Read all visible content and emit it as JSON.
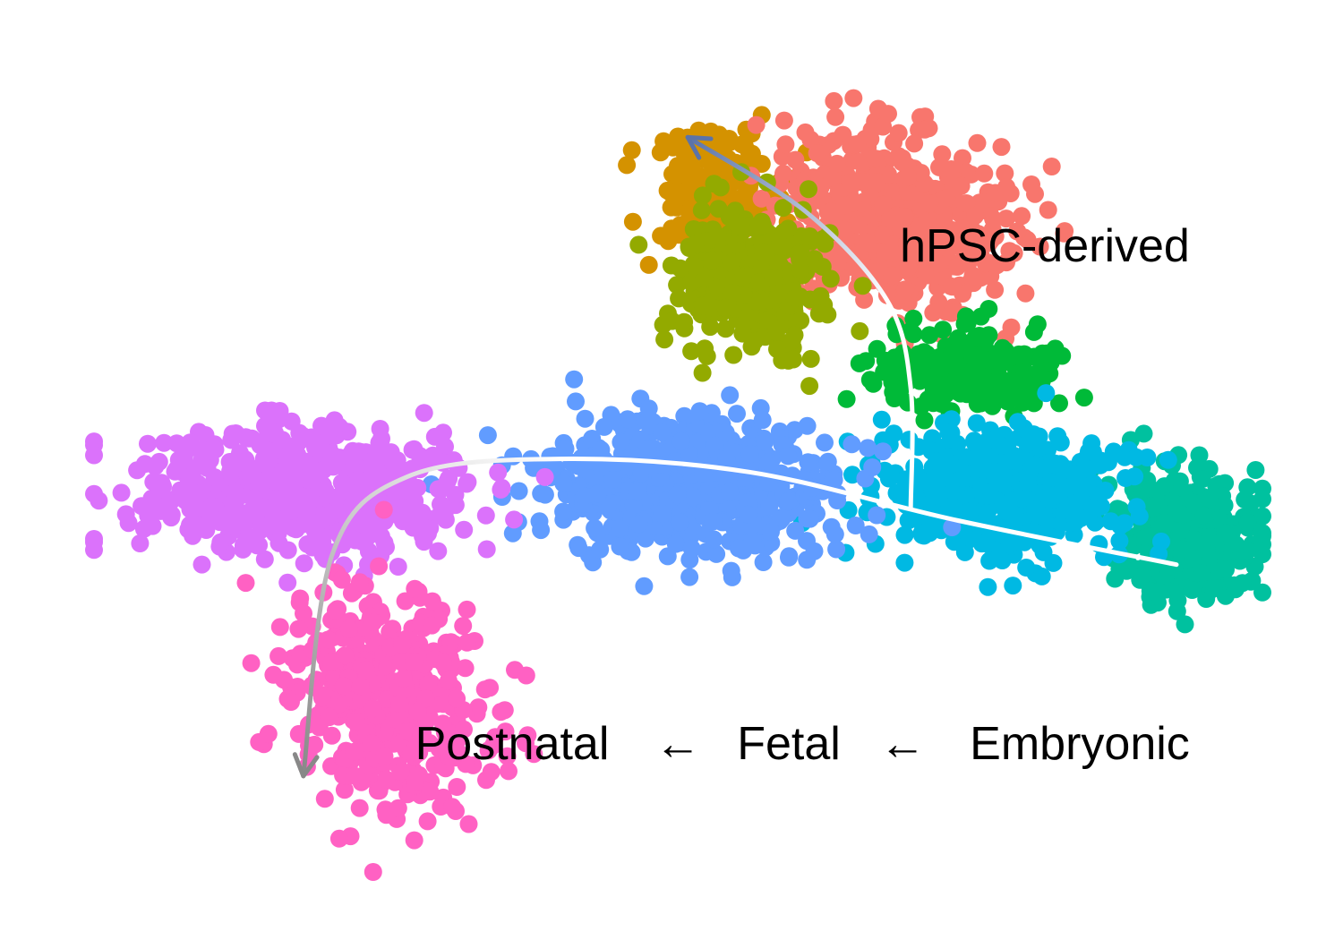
{
  "chart_data": {
    "type": "scatter",
    "title": "",
    "xlabel": "",
    "ylabel": "",
    "axes_visible": false,
    "grid": false,
    "legend": "none",
    "annotations": {
      "branch_label": "hPSC-derived",
      "stage_axis": {
        "postnatal": "Postnatal",
        "arrow_1": "←",
        "fetal": "Fetal",
        "arrow_2": "←",
        "embryonic": "Embryonic"
      }
    },
    "series": [
      {
        "color": "#D49200",
        "center": [
          6.6,
          7.8
        ],
        "spread": [
          0.55,
          0.6
        ],
        "rot": 0.0,
        "n": 190
      },
      {
        "color": "#F8766D",
        "center": [
          8.5,
          7.5
        ],
        "spread": [
          1.0,
          0.75
        ],
        "rot": -0.2,
        "n": 620
      },
      {
        "color": "#93AA00",
        "center": [
          7.0,
          6.8
        ],
        "spread": [
          0.6,
          0.65
        ],
        "rot": 0.0,
        "n": 360
      },
      {
        "color": "#00BA38",
        "center": [
          9.3,
          5.8
        ],
        "spread": [
          0.75,
          0.4
        ],
        "rot": 0.0,
        "n": 240
      },
      {
        "color": "#00C19F",
        "center": [
          11.6,
          3.9
        ],
        "spread": [
          0.6,
          0.55
        ],
        "rot": 0.0,
        "n": 430
      },
      {
        "color": "#00B9E3",
        "center": [
          9.7,
          4.4
        ],
        "spread": [
          1.0,
          0.55
        ],
        "rot": 0.0,
        "n": 520
      },
      {
        "color": "#619CFF",
        "center": [
          6.4,
          4.5
        ],
        "spread": [
          1.3,
          0.6
        ],
        "rot": 0.0,
        "n": 620
      },
      {
        "color": "#DB72FB",
        "center": [
          2.3,
          4.4
        ],
        "spread": [
          1.45,
          0.6
        ],
        "rot": 0.0,
        "n": 560
      },
      {
        "color": "#FF61C3",
        "center": [
          3.2,
          2.1
        ],
        "spread": [
          0.85,
          1.0
        ],
        "rot": 0.45,
        "n": 460
      }
    ],
    "trajectories": [
      {
        "name": "main",
        "color": "#ffffff",
        "path": [
          [
            11.5,
            3.6
          ],
          [
            9.2,
            4.1
          ],
          [
            7.0,
            4.65
          ],
          [
            5.0,
            4.8
          ],
          [
            3.4,
            4.6
          ],
          [
            2.6,
            3.7
          ],
          [
            2.3,
            1.2
          ]
        ],
        "gradient_end_color": "#888888"
      },
      {
        "name": "branch",
        "color": "#ffffff",
        "path": [
          [
            8.7,
            4.25
          ],
          [
            8.7,
            5.6
          ],
          [
            8.45,
            6.6
          ],
          [
            7.6,
            7.6
          ],
          [
            6.35,
            8.45
          ]
        ],
        "gradient_end_color": "#5B73A8"
      }
    ],
    "xlim": [
      0,
      12.5
    ],
    "ylim": [
      0,
      9.5
    ]
  }
}
